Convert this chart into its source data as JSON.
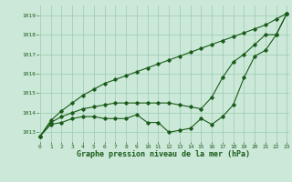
{
  "title": "Graphe pression niveau de la mer (hPa)",
  "background_color": "#cce8d8",
  "plot_bg_color": "#cce8d8",
  "line_color": "#1a5c1a",
  "grid_color": "#99ccb0",
  "x_values": [
    0,
    1,
    2,
    3,
    4,
    5,
    6,
    7,
    8,
    9,
    10,
    11,
    12,
    13,
    14,
    15,
    16,
    17,
    18,
    19,
    20,
    21,
    22,
    23
  ],
  "series1": [
    1012.8,
    1013.6,
    1014.1,
    1014.5,
    1014.9,
    1015.2,
    1015.5,
    1015.7,
    1015.9,
    1016.1,
    1016.3,
    1016.5,
    1016.7,
    1016.9,
    1017.1,
    1017.3,
    1017.5,
    1017.7,
    1017.9,
    1018.1,
    1018.3,
    1018.5,
    1018.8,
    1019.1
  ],
  "series2": [
    1012.8,
    1013.5,
    1013.8,
    1014.0,
    1014.2,
    1014.3,
    1014.4,
    1014.5,
    1014.5,
    1014.5,
    1014.5,
    1014.5,
    1014.5,
    1014.4,
    1014.3,
    1014.2,
    1014.8,
    1015.8,
    1016.6,
    1017.0,
    1017.5,
    1018.0,
    1018.0,
    1019.1
  ],
  "series3": [
    1012.8,
    1013.4,
    1013.5,
    1013.7,
    1013.8,
    1013.8,
    1013.7,
    1013.7,
    1013.7,
    1013.9,
    1013.5,
    1013.5,
    1013.0,
    1013.1,
    1013.2,
    1013.7,
    1013.4,
    1013.8,
    1014.4,
    1015.8,
    1016.9,
    1017.2,
    1018.0,
    1019.1
  ],
  "ylim_min": 1012.5,
  "ylim_max": 1019.5,
  "yticks": [
    1013,
    1014,
    1015,
    1016,
    1017,
    1018,
    1019
  ],
  "xlim_min": -0.2,
  "xlim_max": 23.2,
  "marker": "D",
  "markersize": 1.8,
  "linewidth": 0.8,
  "xlabel_fontsize": 6.0,
  "tick_fontsize": 4.5
}
